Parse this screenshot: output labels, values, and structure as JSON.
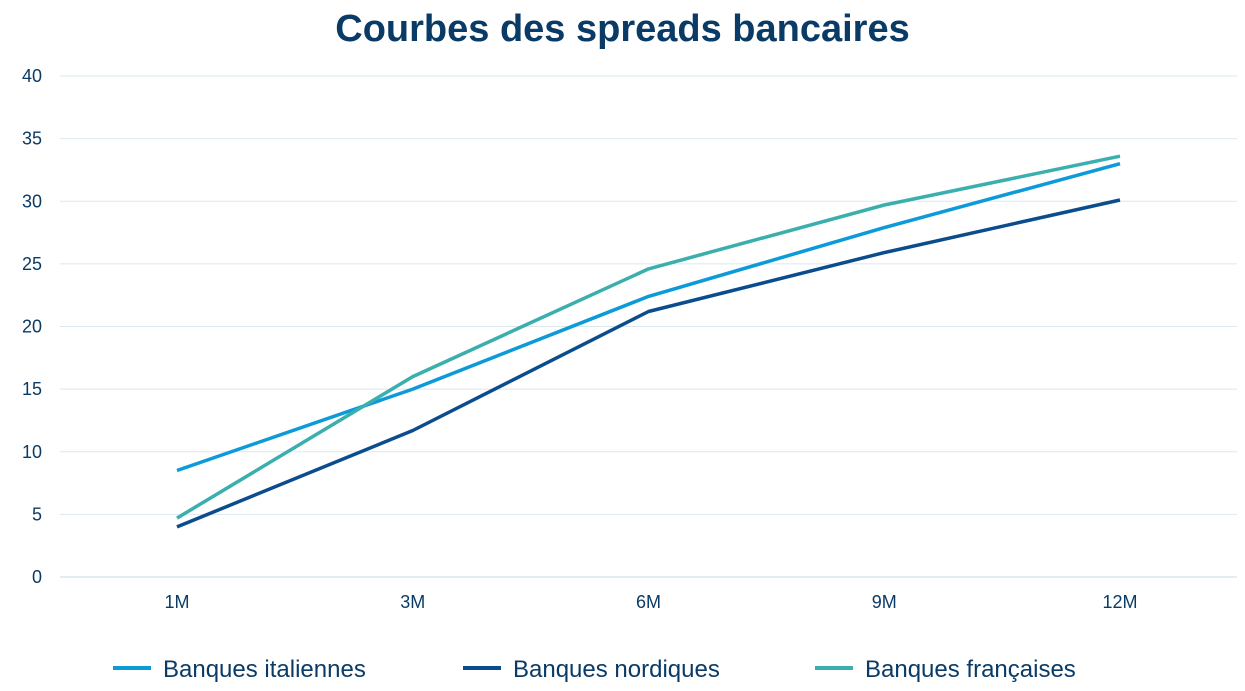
{
  "chart_data": {
    "type": "line",
    "title": "Courbes des spreads bancaires",
    "xlabel": "",
    "ylabel": "",
    "categories": [
      "1M",
      "3M",
      "6M",
      "9M",
      "12M"
    ],
    "ylim": [
      0,
      40
    ],
    "yticks": [
      "0",
      "5",
      "10",
      "15",
      "20",
      "25",
      "30",
      "35",
      "40"
    ],
    "grid": true,
    "legend_position": "bottom",
    "series": [
      {
        "name": "Banques italiennes",
        "color": "#0d9ad9",
        "values": [
          8.5,
          15.0,
          22.4,
          27.9,
          33.0
        ]
      },
      {
        "name": "Banques nordiques",
        "color": "#0b4d8c",
        "values": [
          4.0,
          11.7,
          21.2,
          25.9,
          30.1
        ]
      },
      {
        "name": "Banques françaises",
        "color": "#3aafae",
        "values": [
          4.7,
          16.0,
          24.6,
          29.7,
          33.6
        ]
      }
    ]
  }
}
